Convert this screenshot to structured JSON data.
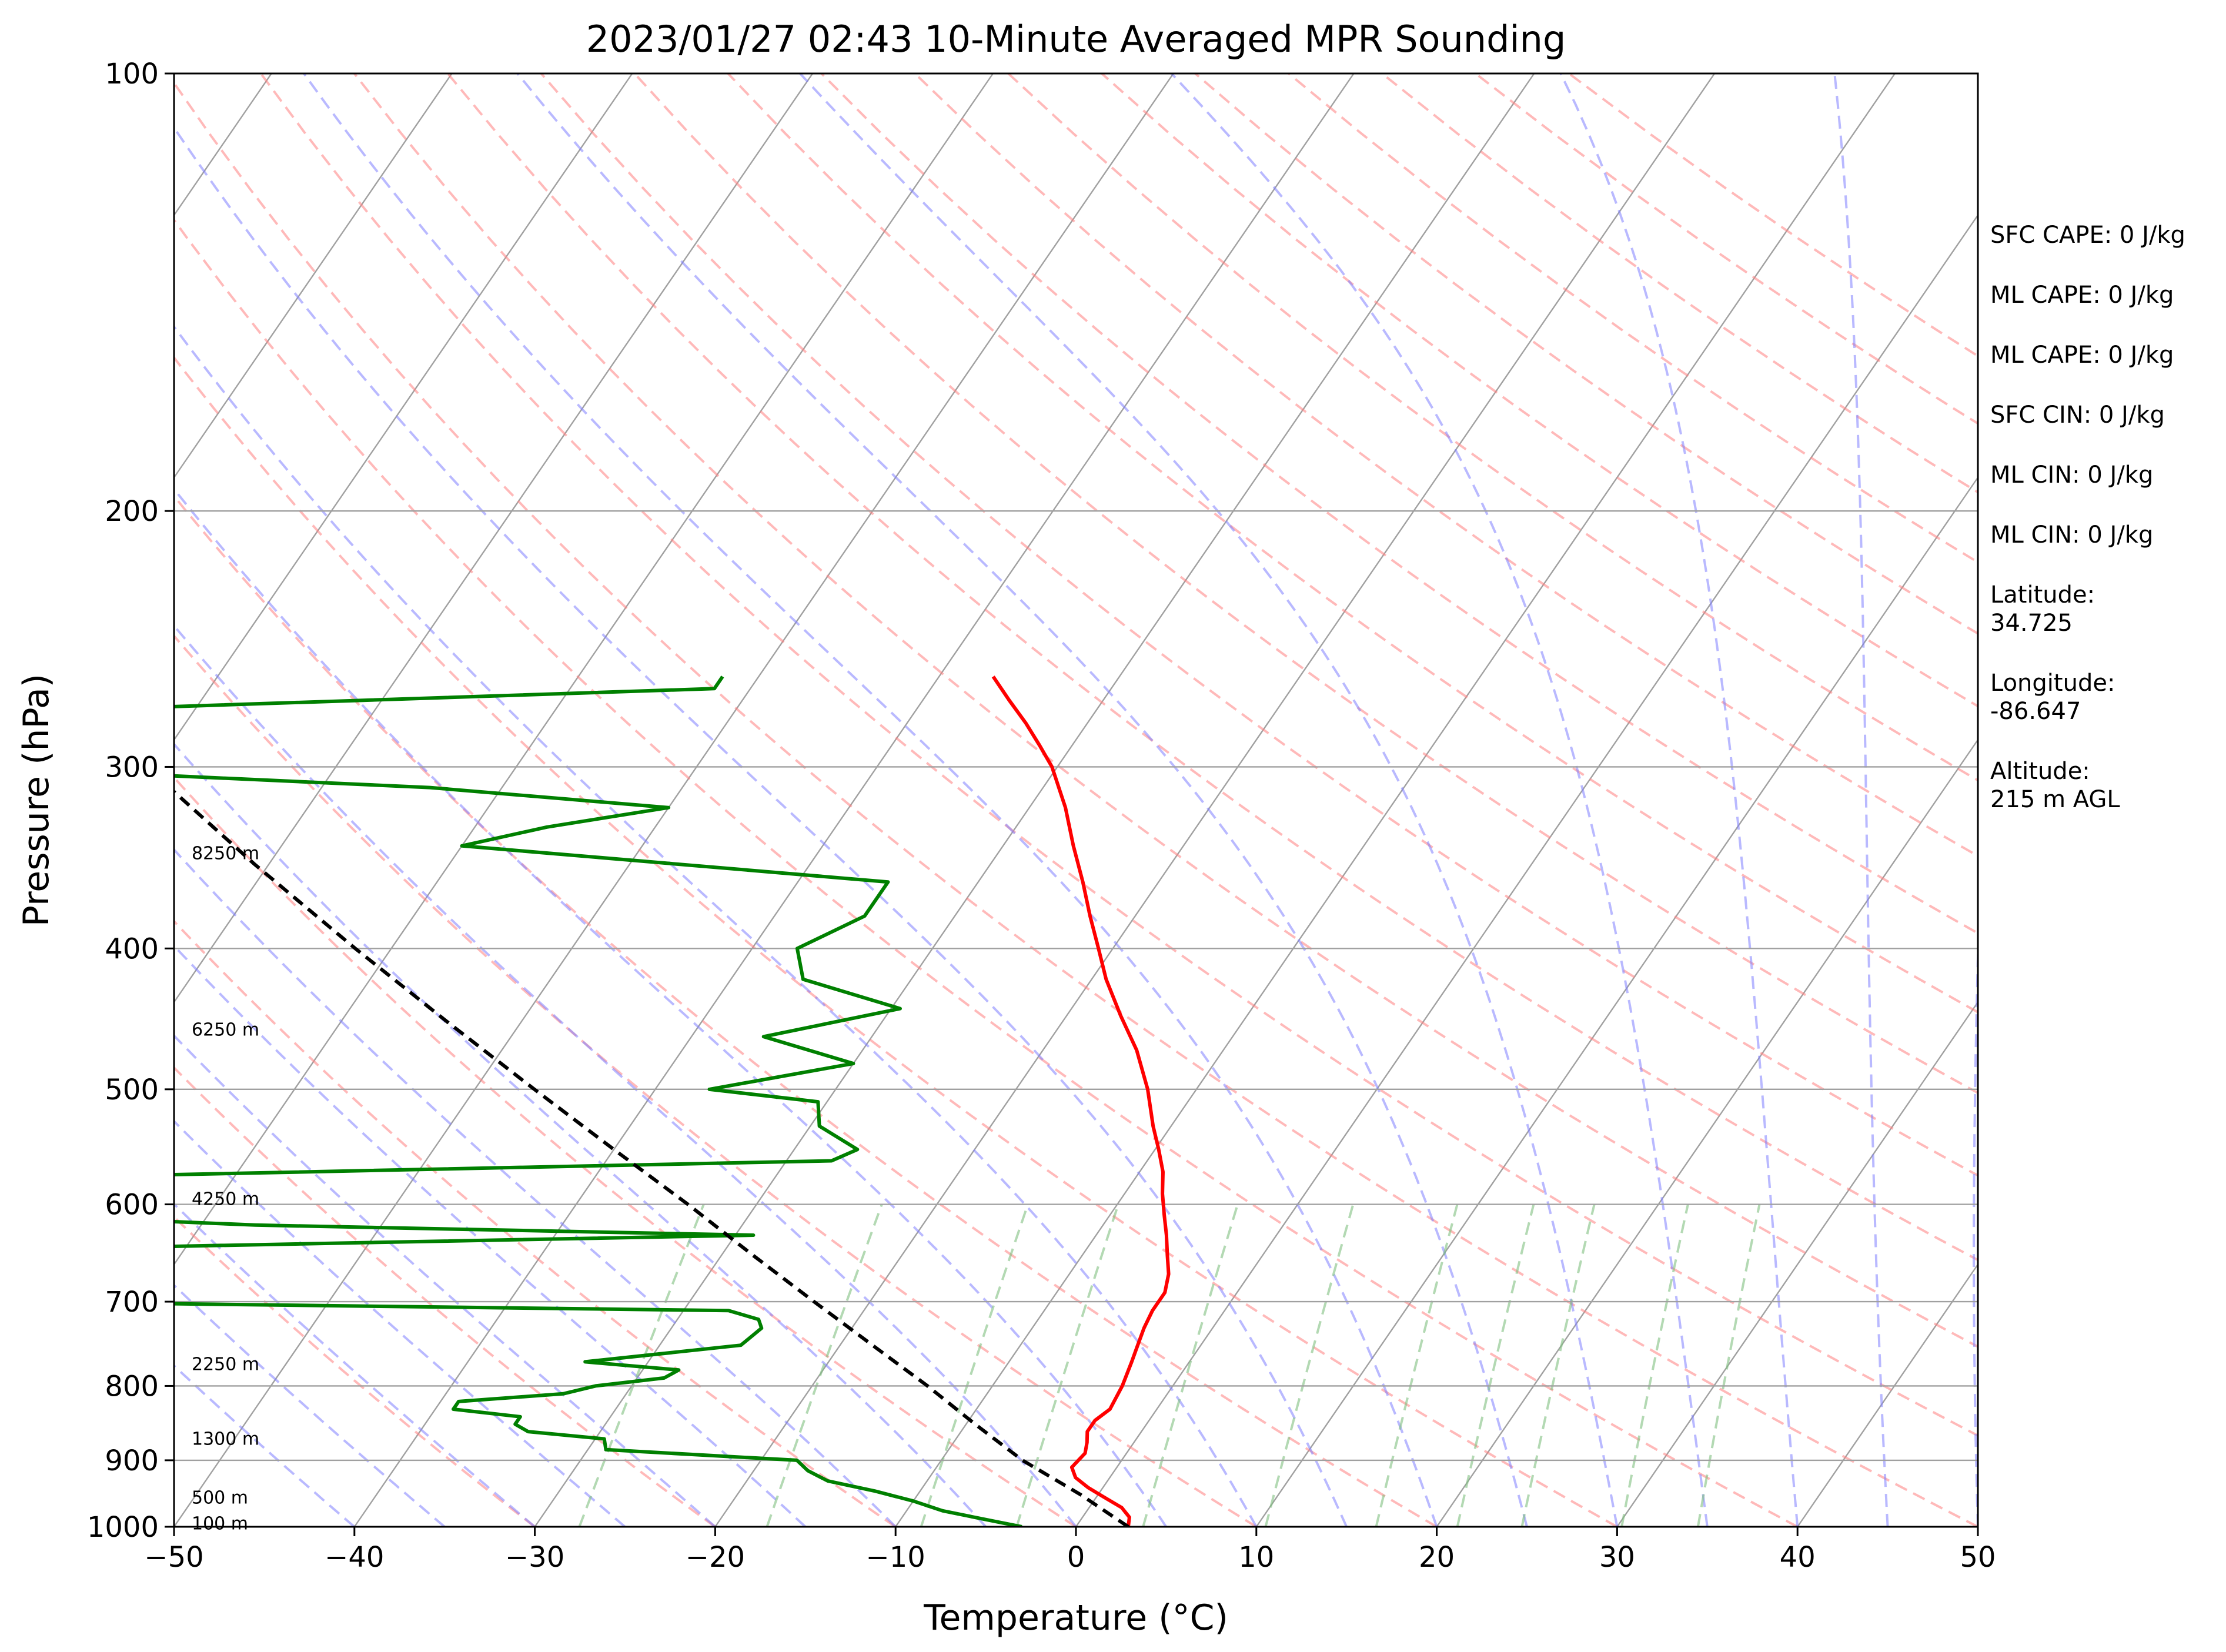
{
  "chart_data": {
    "type": "line",
    "title": "2023/01/27 02:43 10-Minute Averaged MPR Sounding",
    "xlabel": "Temperature (°C)",
    "ylabel": "Pressure (hPa)",
    "xlim": [
      -50,
      50
    ],
    "ylim": [
      1000,
      100
    ],
    "y_scale": "log",
    "skew": "skew-T log-P diagram",
    "x_ticks": [
      -50,
      -40,
      -30,
      -20,
      -10,
      0,
      10,
      20,
      30,
      40,
      50
    ],
    "x_tick_labels": [
      "−50",
      "−40",
      "−30",
      "−20",
      "−10",
      "0",
      "10",
      "20",
      "30",
      "40",
      "50"
    ],
    "y_ticks": [
      1000,
      900,
      800,
      700,
      600,
      500,
      400,
      300,
      200,
      100
    ],
    "y_tick_labels": [
      "1000",
      "900",
      "800",
      "700",
      "600",
      "500",
      "400",
      "300",
      "200",
      "100"
    ],
    "series": [
      {
        "role": "temperature",
        "color": "#ff0000",
        "pressure": [
          1000,
          985,
          970,
          955,
          940,
          925,
          910,
          900,
          890,
          875,
          860,
          845,
          830,
          815,
          800,
          785,
          770,
          750,
          730,
          710,
          690,
          670,
          650,
          630,
          610,
          590,
          570,
          550,
          530,
          500,
          470,
          445,
          420,
          400,
          380,
          360,
          340,
          320,
          300,
          290,
          280,
          270,
          260
        ],
        "values": [
          2.9,
          2.6,
          1.8,
          0.5,
          -0.8,
          -1.9,
          -2.5,
          -2.4,
          -2.3,
          -2.6,
          -3.0,
          -3.0,
          -2.6,
          -2.7,
          -2.8,
          -3.0,
          -3.2,
          -3.5,
          -3.8,
          -4.0,
          -4.0,
          -4.5,
          -5.3,
          -6.1,
          -7.0,
          -7.9,
          -8.7,
          -9.8,
          -11.0,
          -12.7,
          -14.8,
          -17.0,
          -19.2,
          -20.8,
          -22.5,
          -24.2,
          -26.1,
          -28.0,
          -30.3,
          -31.8,
          -33.4,
          -35.2,
          -37.0
        ]
      },
      {
        "role": "dewpoint",
        "color": "#008000",
        "pressure": [
          1000,
          990,
          975,
          960,
          945,
          930,
          915,
          900,
          885,
          870,
          860,
          850,
          840,
          830,
          820,
          810,
          800,
          790,
          780,
          770,
          750,
          730,
          720,
          710,
          700,
          690,
          680,
          665,
          660,
          650,
          630,
          620,
          600,
          590,
          580,
          560,
          550,
          530,
          510,
          500,
          480,
          460,
          440,
          420,
          400,
          380,
          360,
          340,
          330,
          320,
          310,
          300,
          295,
          275,
          265,
          260
        ],
        "values": [
          -3,
          -5,
          -8,
          -10,
          -12.5,
          -15.5,
          -17,
          -18,
          -29,
          -29.5,
          -34,
          -35,
          -35,
          -39,
          -39,
          -33.5,
          -32,
          -28.5,
          -28,
          -33.5,
          -25.5,
          -25,
          -25.5,
          -27.5,
          -68,
          -85,
          -85,
          -85,
          -85,
          -85,
          -29,
          -57,
          -85,
          -85,
          -85,
          -27.5,
          -26.5,
          -29.5,
          -30.5,
          -37,
          -30,
          -36,
          -29.5,
          -36,
          -37.5,
          -35,
          -35,
          -60,
          -56,
          -50,
          -64,
          -90,
          -90,
          -90,
          -52,
          -52
        ]
      },
      {
        "role": "parcel profile",
        "color": "#000000",
        "pressure": [
          1000,
          950,
          900,
          850,
          800,
          750,
          700,
          650,
          600,
          550,
          500,
          450,
          400,
          350,
          300,
          280
        ],
        "values": [
          2.9,
          -1.0,
          -5.5,
          -9.5,
          -13.6,
          -18.2,
          -23.1,
          -28.3,
          -33.8,
          -40.0,
          -46.7,
          -54.0,
          -62.0,
          -70.8,
          -80.5,
          -84.5
        ]
      }
    ],
    "background": {
      "isotherm_color": "#a0a0a0",
      "dry_adiabat_color": "#ff8080",
      "moist_adiabat_color": "#8080ff",
      "mixing_ratio_color": "#80c080"
    },
    "height_labels": [
      "8250 m",
      "6250 m",
      "4250 m",
      "2250 m",
      "1300 m",
      "500 m",
      "100 m"
    ],
    "height_label_pressure": [
      344,
      455,
      595,
      773,
      870,
      955,
      995
    ],
    "side_panel": [
      {
        "label": "SFC CAPE: 0 J/kg"
      },
      {
        "label": "ML CAPE: 0 J/kg"
      },
      {
        "label": "ML CAPE: 0 J/kg"
      },
      {
        "label": "SFC CIN: 0 J/kg"
      },
      {
        "label": "ML CIN: 0 J/kg"
      },
      {
        "label": "ML CIN: 0 J/kg"
      },
      {
        "label": "Latitude:",
        "value": "34.725"
      },
      {
        "label": "Longitude:",
        "value": "-86.647"
      },
      {
        "label": "Altitude:",
        "value": "215 m AGL"
      }
    ]
  }
}
